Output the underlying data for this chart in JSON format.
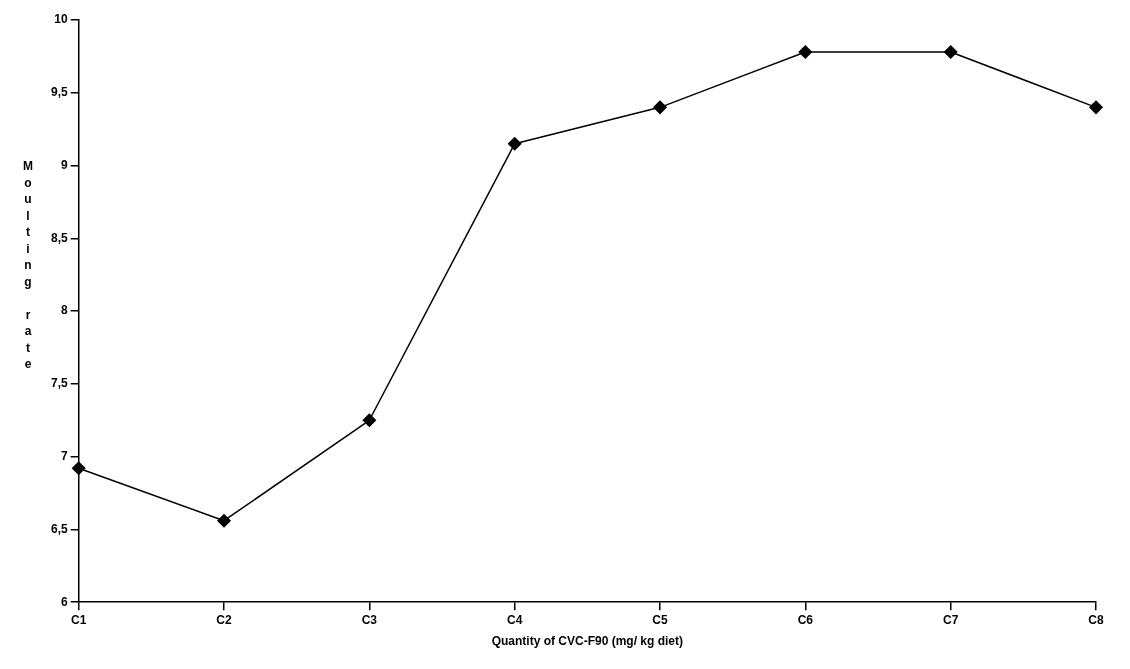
{
  "chart_data": {
    "type": "line",
    "xlabel": "Quantity of CVC-F90 (mg/ kg diet)",
    "ylabel": "Moulting rate",
    "categories": [
      "C1",
      "C2",
      "C3",
      "C4",
      "C5",
      "C6",
      "C7",
      "C8"
    ],
    "series": [
      {
        "color": "#000000",
        "values": [
          6.92,
          6.56,
          7.25,
          9.15,
          9.4,
          9.78,
          9.78,
          9.4
        ]
      }
    ],
    "ylim": [
      6,
      10
    ],
    "yticks": [
      6,
      {
        "value": 6.5,
        "label": "6,5"
      },
      7,
      {
        "value": 7.5,
        "label": "7,5"
      },
      8,
      {
        "value": 8.5,
        "label": "8,5"
      },
      9,
      {
        "value": 9.5,
        "label": "9,5"
      },
      10
    ],
    "marker": "diamond",
    "line_style": "solid",
    "grid": false,
    "legend": false
  }
}
